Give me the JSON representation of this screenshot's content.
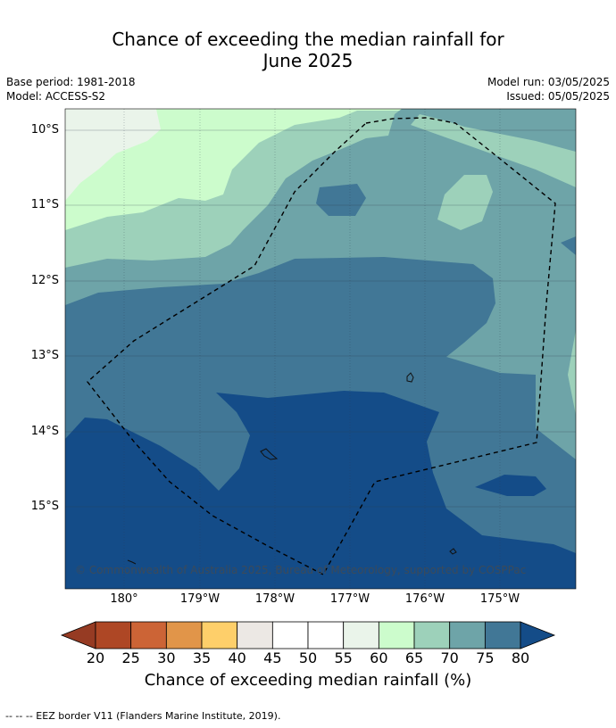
{
  "title": {
    "line1": "Chance of exceeding the median rainfall for",
    "line2": "June 2025"
  },
  "info": {
    "base_period": "Base period: 1981-2018",
    "model": "Model: ACCESS-S2",
    "model_run": "Model run: 03/05/2025",
    "issued": "Issued: 05/05/2025"
  },
  "map": {
    "lat_labels": [
      "10°S",
      "11°S",
      "12°S",
      "13°S",
      "14°S",
      "15°S"
    ],
    "lon_labels": [
      "180°",
      "179°W",
      "178°W",
      "177°W",
      "176°W",
      "175°W"
    ],
    "copyright": "© Commonwealth of Australia 2025, Bureau of Meteorology, supported by COSPPac",
    "eez_boundary": "dashed",
    "colors": {
      "c40_45": "#ece8e4",
      "c55_60": "#eaf4ea",
      "c60_65": "#ccfccc",
      "c65_70": "#9dd1ba",
      "c70_75": "#6ea4a8",
      "c75_80": "#417796",
      "c80_plus": "#144c88"
    }
  },
  "colorbar": {
    "ticks": [
      "20",
      "25",
      "30",
      "35",
      "40",
      "45",
      "50",
      "55",
      "60",
      "65",
      "70",
      "75",
      "80"
    ],
    "colors": [
      "#ae4725",
      "#cc6436",
      "#e19549",
      "#fecf6a",
      "#ece8e4",
      "#ffffff",
      "#ffffff",
      "#eaf4ea",
      "#ccfccc",
      "#9dd1ba",
      "#6ea4a8",
      "#417796"
    ],
    "under_color": "#963b23",
    "over_color": "#144c88",
    "label": "Chance of exceeding median rainfall (%)"
  },
  "footnote": "--  --  -- EEZ border V11 (Flanders Marine Institute, 2019)."
}
